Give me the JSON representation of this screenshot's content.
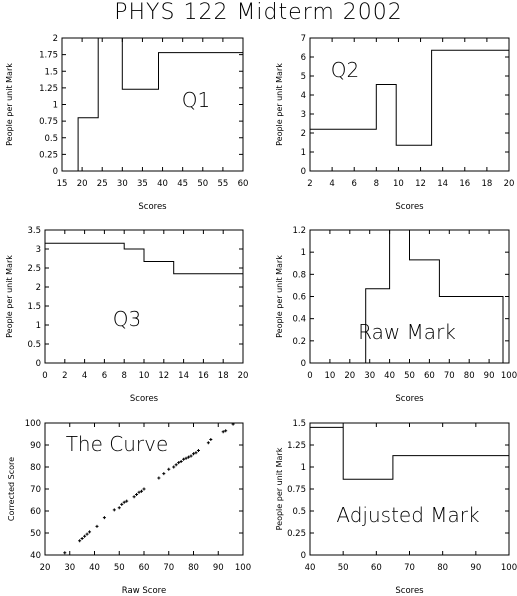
{
  "title": "PHYS 122 Midterm 2002",
  "chart_data": [
    {
      "id": "q1",
      "type": "step",
      "annotation": "Q1",
      "xlabel": "Scores",
      "ylabel": "People per unit Mark",
      "xlim": [
        15,
        60
      ],
      "ylim": [
        0,
        2
      ],
      "xticks": [
        15,
        20,
        25,
        30,
        35,
        40,
        45,
        50,
        55,
        60
      ],
      "yticks": [
        0,
        0.25,
        0.5,
        0.75,
        1,
        1.25,
        1.5,
        1.75,
        2
      ],
      "ytick_labels": [
        "0",
        "0.25",
        "0.5",
        "0.75",
        "1",
        "1.25",
        "1.5",
        "1.75",
        "2"
      ],
      "points": [
        [
          19,
          0
        ],
        [
          19,
          0.8
        ],
        [
          24,
          0.8
        ],
        [
          24,
          2.2
        ],
        [
          30,
          2.2
        ],
        [
          30,
          1.23
        ],
        [
          39,
          1.23
        ],
        [
          39,
          1.78
        ],
        [
          60,
          1.78
        ]
      ]
    },
    {
      "id": "q2",
      "type": "step",
      "annotation": "Q2",
      "xlabel": "Scores",
      "ylabel": "People per unit Mark",
      "xlim": [
        2,
        20
      ],
      "ylim": [
        0,
        7
      ],
      "xticks": [
        2,
        4,
        6,
        8,
        10,
        12,
        14,
        16,
        18,
        20
      ],
      "yticks": [
        0,
        1,
        2,
        3,
        4,
        5,
        6,
        7
      ],
      "ytick_labels": [
        "0",
        "1",
        "2",
        "3",
        "4",
        "5",
        "6",
        "7"
      ],
      "points": [
        [
          2,
          2.2
        ],
        [
          8,
          2.2
        ],
        [
          8,
          4.55
        ],
        [
          9.8,
          4.55
        ],
        [
          9.8,
          1.35
        ],
        [
          13,
          1.35
        ],
        [
          13,
          6.35
        ],
        [
          20,
          6.35
        ]
      ]
    },
    {
      "id": "q3",
      "type": "step",
      "annotation": "Q3",
      "xlabel": "Scores",
      "ylabel": "People per unit Mark",
      "xlim": [
        0,
        20
      ],
      "ylim": [
        0,
        3.5
      ],
      "xticks": [
        0,
        2,
        4,
        6,
        8,
        10,
        12,
        14,
        16,
        18,
        20
      ],
      "yticks": [
        0,
        0.5,
        1,
        1.5,
        2,
        2.5,
        3,
        3.5
      ],
      "ytick_labels": [
        "0",
        "0.5",
        "1",
        "1.5",
        "2",
        "2.5",
        "3",
        "3.5"
      ],
      "points": [
        [
          0,
          3.15
        ],
        [
          8,
          3.15
        ],
        [
          8,
          3.0
        ],
        [
          10,
          3.0
        ],
        [
          10,
          2.67
        ],
        [
          13,
          2.67
        ],
        [
          13,
          2.35
        ],
        [
          20,
          2.35
        ]
      ]
    },
    {
      "id": "raw",
      "type": "step",
      "annotation": "Raw Mark",
      "xlabel": "Scores",
      "ylabel": "People per unit Mark",
      "xlim": [
        0,
        100
      ],
      "ylim": [
        0,
        1.2
      ],
      "xticks": [
        0,
        10,
        20,
        30,
        40,
        50,
        60,
        70,
        80,
        90,
        100
      ],
      "yticks": [
        0,
        0.2,
        0.4,
        0.6,
        0.8,
        1,
        1.2
      ],
      "ytick_labels": [
        "0",
        "0.2",
        "0.4",
        "0.6",
        "0.8",
        "1",
        "1.2"
      ],
      "points": [
        [
          28,
          0
        ],
        [
          28,
          0.67
        ],
        [
          40,
          0.67
        ],
        [
          40,
          1.3
        ],
        [
          50,
          1.3
        ],
        [
          50,
          0.93
        ],
        [
          65,
          0.93
        ],
        [
          65,
          0.6
        ],
        [
          97,
          0.6
        ],
        [
          97,
          0
        ]
      ]
    },
    {
      "id": "curve",
      "type": "scatter",
      "annotation": "The Curve",
      "xlabel": "Raw Score",
      "ylabel": "Corrected Score",
      "xlim": [
        20,
        100
      ],
      "ylim": [
        40,
        100
      ],
      "xticks": [
        20,
        30,
        40,
        50,
        60,
        70,
        80,
        90,
        100
      ],
      "yticks": [
        40,
        50,
        60,
        70,
        80,
        90,
        100
      ],
      "ytick_labels": [
        "40",
        "50",
        "60",
        "70",
        "80",
        "90",
        "100"
      ],
      "x": [
        28,
        34,
        35,
        36,
        37,
        38,
        41,
        44,
        48,
        50,
        51,
        52,
        53,
        56,
        57,
        58,
        59,
        60,
        66,
        68,
        70,
        72,
        73,
        74,
        75,
        76,
        77,
        78,
        79,
        80,
        81,
        82,
        86,
        87,
        92,
        93,
        96
      ],
      "y": [
        41,
        46.5,
        47.5,
        48.5,
        49.5,
        50.5,
        53,
        57,
        60.5,
        61.5,
        63,
        64,
        64.5,
        66.5,
        67.5,
        68.5,
        69,
        70,
        75,
        77,
        79,
        80,
        81,
        82,
        82.5,
        83.5,
        84,
        84.5,
        85,
        86,
        86.5,
        87.5,
        91,
        92.5,
        96,
        96.5,
        99.5
      ]
    },
    {
      "id": "adjusted",
      "type": "step",
      "annotation": "Adjusted Mark",
      "xlabel": "Scores",
      "ylabel": "People per unit Mark",
      "xlim": [
        40,
        100
      ],
      "ylim": [
        0,
        1.5
      ],
      "xticks": [
        40,
        50,
        60,
        70,
        80,
        90,
        100
      ],
      "yticks": [
        0,
        0.25,
        0.5,
        0.75,
        1,
        1.25,
        1.5
      ],
      "ytick_labels": [
        "0",
        "0.25",
        "0.5",
        "0.75",
        "1",
        "1.25",
        "1.5"
      ],
      "points": [
        [
          40,
          1.45
        ],
        [
          50,
          1.45
        ],
        [
          50,
          0.86
        ],
        [
          65,
          0.86
        ],
        [
          65,
          1.13
        ],
        [
          100,
          1.13
        ]
      ]
    }
  ]
}
